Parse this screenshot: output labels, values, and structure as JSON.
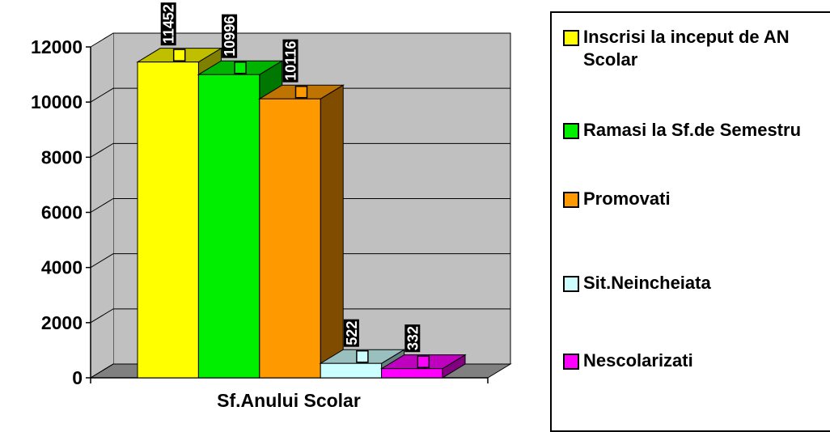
{
  "chart_data": {
    "type": "bar3d",
    "x_label": "Sf.Anului Scolar",
    "categories": [
      "Sf.Anului Scolar"
    ],
    "series": [
      {
        "name": "Inscrisi la inceput de AN Scolar",
        "color": "#ffff00",
        "values": [
          11452
        ]
      },
      {
        "name": "Ramasi la Sf.de Semestru",
        "color": "#00ee00",
        "values": [
          10996
        ]
      },
      {
        "name": "Promovati",
        "color": "#ff9900",
        "values": [
          10116
        ]
      },
      {
        "name": "Sit.Neincheiata",
        "color": "#ccffff",
        "values": [
          522
        ]
      },
      {
        "name": "Nescolarizati",
        "color": "#ff00ff",
        "values": [
          332
        ]
      }
    ],
    "ylim": [
      0,
      12000
    ],
    "yticks": [
      0,
      2000,
      4000,
      6000,
      8000,
      10000,
      12000
    ],
    "grid": true,
    "legend": "right"
  }
}
